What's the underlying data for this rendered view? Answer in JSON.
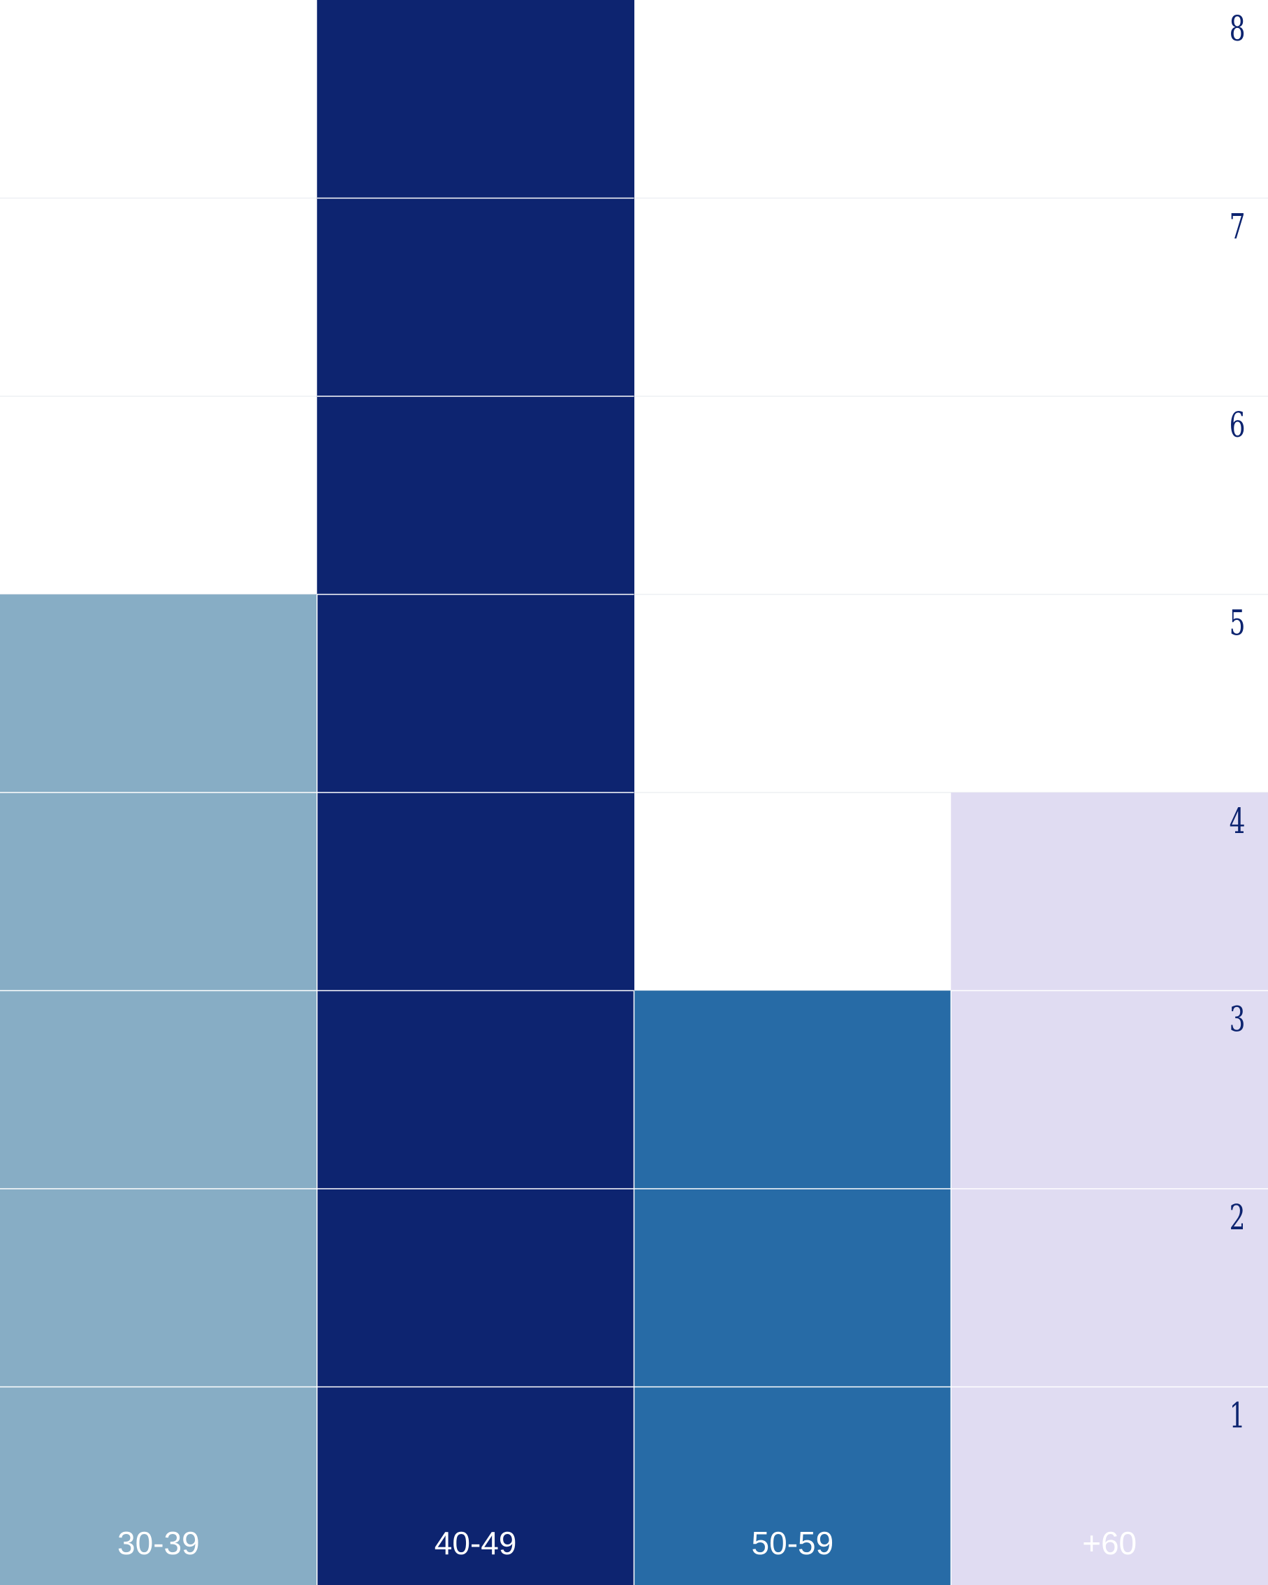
{
  "chart_data": {
    "type": "bar",
    "categories": [
      "30-39",
      "40-49",
      "50-59",
      "+60"
    ],
    "values": [
      5,
      8,
      3,
      4
    ],
    "ylim": [
      0,
      8
    ],
    "ytick_labels": [
      "1",
      "2",
      "3",
      "4",
      "5",
      "6",
      "7",
      "8"
    ],
    "colors": [
      "#87adc5",
      "#0d2470",
      "#276ba6",
      "#e0dcf2"
    ],
    "label_colors": [
      "#ffffff",
      "#ffffff",
      "#ffffff",
      "#ffffff"
    ],
    "tick_color": "#0d2470",
    "grid": true,
    "style": "stacked unit blocks"
  }
}
